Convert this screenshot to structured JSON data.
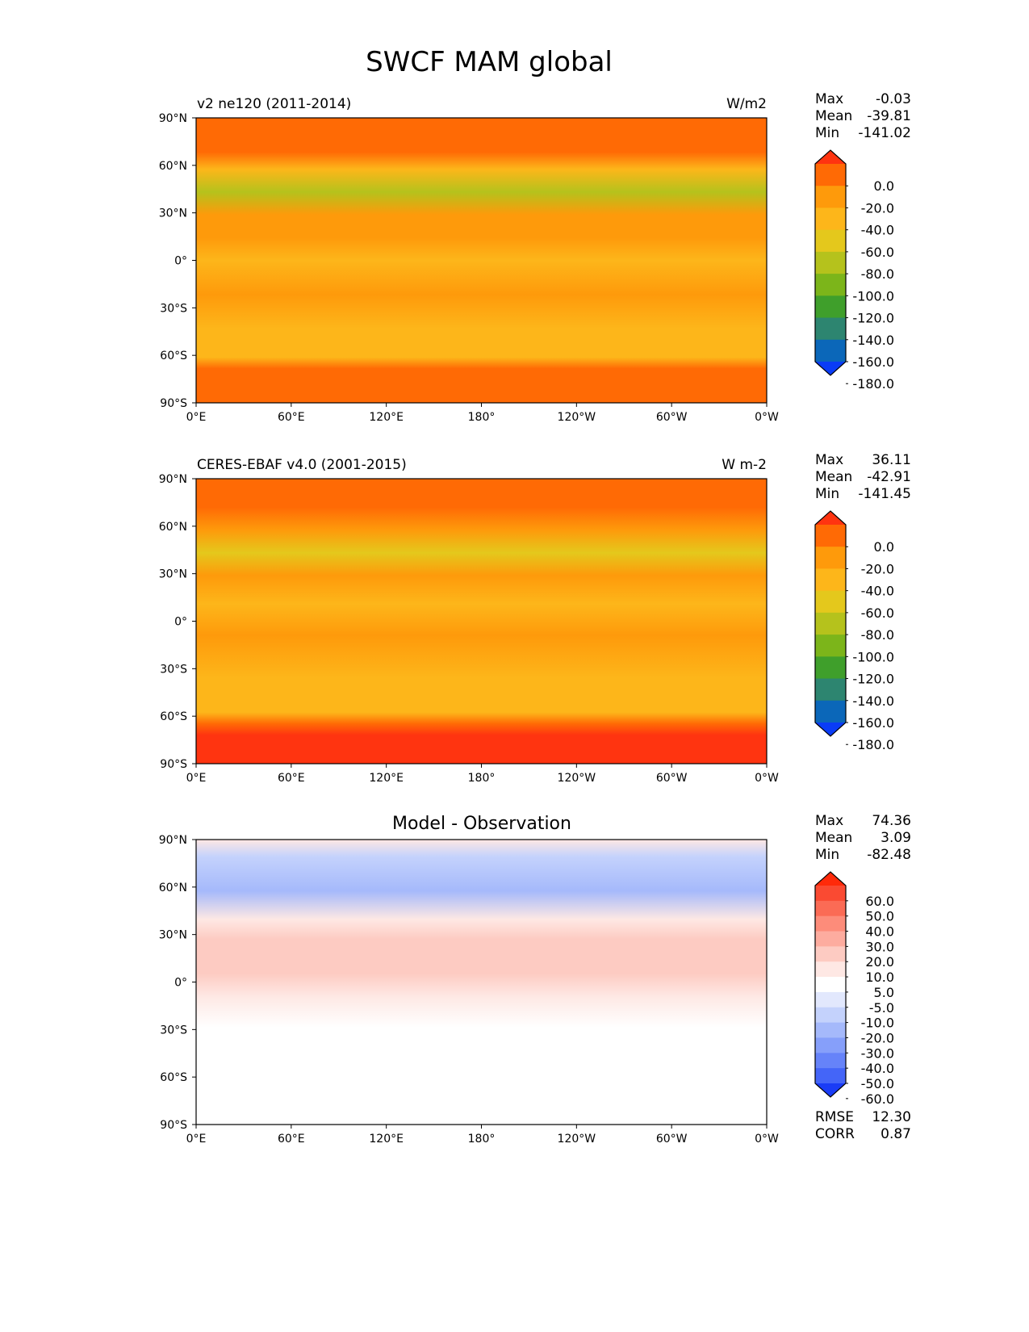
{
  "figure": {
    "title": "SWCF MAM global"
  },
  "axes": {
    "lat_ticks": [
      "90°N",
      "60°N",
      "30°N",
      "0°",
      "30°S",
      "60°S",
      "90°S"
    ],
    "lon_ticks": [
      "0°E",
      "60°E",
      "120°E",
      "180°",
      "120°W",
      "60°W",
      "0°W"
    ]
  },
  "panels": [
    {
      "id": "model",
      "left_title": "v2 ne120 (2011-2014)",
      "center_title": "",
      "right_title": "W/m2",
      "stats": [
        {
          "label": "Max",
          "value": "-0.03"
        },
        {
          "label": "Mean",
          "value": "-39.81"
        },
        {
          "label": "Min",
          "value": "-141.02"
        }
      ],
      "colorbar_labels": [
        "0.0",
        "-20.0",
        "-40.0",
        "-60.0",
        "-80.0",
        "-100.0",
        "-120.0",
        "-140.0",
        "-160.0",
        "-180.0"
      ]
    },
    {
      "id": "obs",
      "left_title": "CERES-EBAF v4.0 (2001-2015)",
      "center_title": "",
      "right_title": "W m-2",
      "stats": [
        {
          "label": "Max",
          "value": "36.11"
        },
        {
          "label": "Mean",
          "value": "-42.91"
        },
        {
          "label": "Min",
          "value": "-141.45"
        }
      ],
      "colorbar_labels": [
        "0.0",
        "-20.0",
        "-40.0",
        "-60.0",
        "-80.0",
        "-100.0",
        "-120.0",
        "-140.0",
        "-160.0",
        "-180.0"
      ]
    },
    {
      "id": "diff",
      "left_title": "",
      "center_title": "Model - Observation",
      "right_title": "",
      "stats": [
        {
          "label": "Max",
          "value": "74.36"
        },
        {
          "label": "Mean",
          "value": "3.09"
        },
        {
          "label": "Min",
          "value": "-82.48"
        }
      ],
      "colorbar_labels": [
        "60.0",
        "50.0",
        "40.0",
        "30.0",
        "20.0",
        "10.0",
        "5.0",
        "-5.0",
        "-10.0",
        "-20.0",
        "-30.0",
        "-40.0",
        "-50.0",
        "-60.0"
      ],
      "metrics": [
        {
          "label": "RMSE",
          "value": "12.30"
        },
        {
          "label": "CORR",
          "value": "0.87"
        }
      ]
    }
  ],
  "chart_data": [
    {
      "type": "heatmap",
      "title": "v2 ne120 (2011-2014)",
      "units": "W/m2",
      "xlim": [
        0,
        360
      ],
      "ylim": [
        -90,
        90
      ],
      "colorbar_levels": [
        0,
        -20,
        -40,
        -60,
        -80,
        -100,
        -120,
        -140,
        -160,
        -180
      ],
      "colorbar_colors": [
        "#ff3410",
        "#ff6a05",
        "#fe9a0b",
        "#fdb61a",
        "#e4c81c",
        "#b5c21c",
        "#7cb51a",
        "#3f9f2b",
        "#2d8570",
        "#0b67b9",
        "#0a3cf6"
      ],
      "field_approx": [
        {
          "lat": 75,
          "value": -20
        },
        {
          "lat": 45,
          "value": -75
        },
        {
          "lat": 30,
          "value": -45
        },
        {
          "lat": 0,
          "value": -60
        },
        {
          "lat": -30,
          "value": -55
        },
        {
          "lat": -50,
          "value": -55
        },
        {
          "lat": -75,
          "value": -15
        }
      ],
      "stats": {
        "max": -0.03,
        "mean": -39.81,
        "min": -141.02
      }
    },
    {
      "type": "heatmap",
      "title": "CERES-EBAF v4.0 (2001-2015)",
      "units": "W m-2",
      "xlim": [
        0,
        360
      ],
      "ylim": [
        -90,
        90
      ],
      "colorbar_levels": [
        0,
        -20,
        -40,
        -60,
        -80,
        -100,
        -120,
        -140,
        -160,
        -180
      ],
      "colorbar_colors": [
        "#ff3410",
        "#ff6a05",
        "#fe9a0b",
        "#fdb61a",
        "#e4c81c",
        "#b5c21c",
        "#7cb51a",
        "#3f9f2b",
        "#2d8570",
        "#0b67b9",
        "#0a3cf6"
      ],
      "field_approx": [
        {
          "lat": 75,
          "value": -15
        },
        {
          "lat": 45,
          "value": -70
        },
        {
          "lat": 30,
          "value": -40
        },
        {
          "lat": 0,
          "value": -55
        },
        {
          "lat": -30,
          "value": -50
        },
        {
          "lat": -50,
          "value": -50
        },
        {
          "lat": -75,
          "value": -10
        }
      ],
      "stats": {
        "max": 36.11,
        "mean": -42.91,
        "min": -141.45
      }
    },
    {
      "type": "heatmap",
      "title": "Model - Observation",
      "xlim": [
        0,
        360
      ],
      "ylim": [
        -90,
        90
      ],
      "colorbar_levels": [
        60,
        50,
        40,
        30,
        20,
        10,
        5,
        -5,
        -10,
        -20,
        -30,
        -40,
        -50,
        -60
      ],
      "colorbar_colors": [
        "#ff2a0a",
        "#fa4a32",
        "#fb6b55",
        "#fd8c7a",
        "#fdac9f",
        "#fdcbc2",
        "#fee8e4",
        "#ffffff",
        "#e2e8fd",
        "#c4d2fc",
        "#a5b9fb",
        "#869ffa",
        "#6683f9",
        "#4465f8",
        "#1a3cf6"
      ],
      "field_approx": [
        {
          "lat": 70,
          "value": -15
        },
        {
          "lat": 30,
          "value": 10
        },
        {
          "lat": 0,
          "value": 15
        },
        {
          "lat": -25,
          "value": 5
        },
        {
          "lat": -60,
          "value": 0
        }
      ],
      "stats": {
        "max": 74.36,
        "mean": 3.09,
        "min": -82.48,
        "rmse": 12.3,
        "corr": 0.87
      }
    }
  ]
}
